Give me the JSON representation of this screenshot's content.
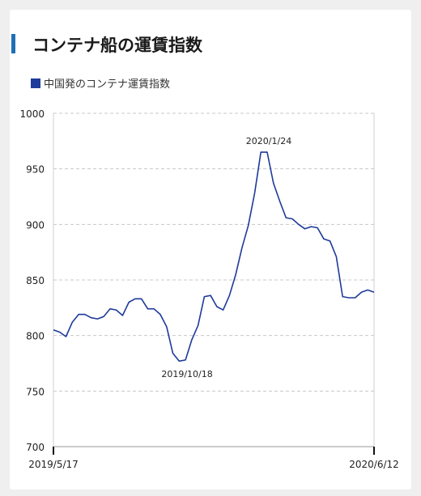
{
  "title": "コンテナ船の運賃指数",
  "colors": {
    "series": "#1e3a9a",
    "accent": "#1f6fb4"
  },
  "chart_data": {
    "type": "line",
    "title": "コンテナ船の運賃指数",
    "xlabel": "",
    "ylabel": "",
    "ylim": [
      700,
      1000
    ],
    "yticks": [
      "1000",
      "950",
      "900",
      "850",
      "800",
      "750",
      "700"
    ],
    "x_start_label": "2019/5/17",
    "x_end_label": "2020/6/12",
    "grid": "horizontal dashed",
    "legend_position": "top-left",
    "series": [
      {
        "name": "中国発のコンテナ運賃指数",
        "values": [
          805,
          803,
          799,
          812,
          819,
          819,
          816,
          815,
          817,
          824,
          823,
          818,
          830,
          833,
          833,
          824,
          824,
          819,
          808,
          784,
          777,
          778,
          796,
          809,
          835,
          836,
          826,
          823,
          836,
          855,
          879,
          899,
          928,
          965,
          965,
          937,
          921,
          906,
          905,
          900,
          896,
          898,
          897,
          887,
          885,
          871,
          835,
          834,
          834,
          839,
          841,
          839
        ]
      }
    ],
    "annotations": [
      {
        "label": "2020/1/24",
        "point_index": 34
      },
      {
        "label": "2019/10/18",
        "point_index": 21
      }
    ]
  }
}
